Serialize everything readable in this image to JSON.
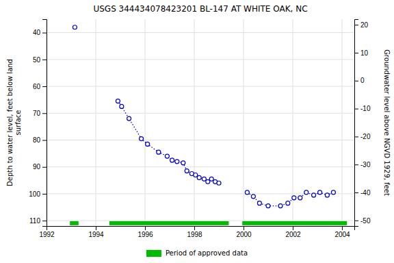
{
  "chart_data": {
    "type": "line",
    "title": "USGS 344434078423201 BL-147 AT WHITE OAK, NC",
    "ylabel": "Depth to water level, feet below land\nsurface",
    "y2label": "Groundwater level above NGVD 1929, feet",
    "xlim": [
      1992,
      2004.5
    ],
    "xticks": [
      1992,
      1994,
      1996,
      1998,
      2000,
      2002,
      2004
    ],
    "ylim": [
      112,
      35
    ],
    "yticks": [
      40,
      50,
      60,
      70,
      80,
      90,
      100,
      110
    ],
    "y2lim": [
      -52,
      22
    ],
    "y2ticks": [
      20,
      10,
      0,
      -10,
      -20,
      -30,
      -40,
      -50
    ],
    "grid": true,
    "legend": "bottom",
    "series": [
      {
        "color": "#0000cc",
        "marker": "circle",
        "line_style": "dotted",
        "x": [
          1993.15
        ],
        "values": [
          38.0
        ]
      },
      {
        "color": "#0000cc",
        "marker": "circle",
        "line_style": "dotted",
        "x": [
          1994.9,
          1995.05,
          1995.35,
          1995.85,
          1996.1,
          1996.55,
          1996.9,
          1997.1,
          1997.3,
          1997.55,
          1997.7,
          1997.9,
          1998.05,
          1998.2,
          1998.4,
          1998.55,
          1998.7,
          1998.85,
          1999.0
        ],
        "values": [
          65.5,
          67.5,
          72.0,
          79.5,
          81.5,
          84.5,
          86.0,
          87.5,
          88.0,
          88.5,
          91.5,
          92.5,
          93.0,
          94.0,
          94.5,
          95.5,
          94.5,
          95.5,
          96.0
        ]
      },
      {
        "color": "#0000cc",
        "marker": "circle",
        "line_style": "dotted",
        "x": [
          2000.15,
          2000.4,
          2000.65,
          2001.0,
          2001.5,
          2001.8,
          2002.05,
          2002.3,
          2002.55,
          2002.85,
          2003.1,
          2003.4,
          2003.65
        ],
        "values": [
          99.5,
          101.0,
          103.5,
          104.5,
          104.5,
          103.5,
          101.5,
          101.5,
          99.5,
          100.5,
          99.5,
          100.5,
          99.5
        ]
      }
    ],
    "approved_periods": {
      "name": "Period of approved data",
      "color": "#00bb00",
      "ranges": [
        [
          1992.95,
          1993.3
        ],
        [
          1994.55,
          1999.4
        ],
        [
          1999.95,
          2004.2
        ]
      ],
      "y": 110.2,
      "height": 1.5
    }
  }
}
